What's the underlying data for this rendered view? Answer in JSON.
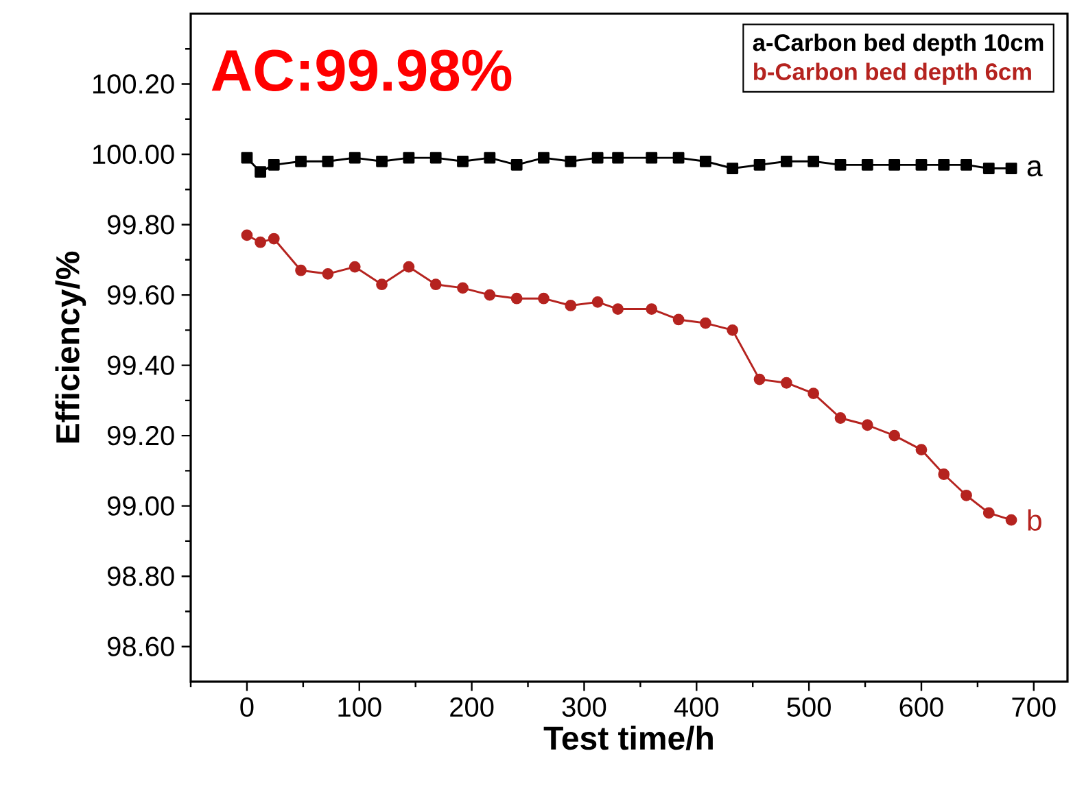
{
  "chart_data": {
    "type": "line",
    "xlabel": "Test time/h",
    "ylabel": "Efficiency/%",
    "annotations": [
      "AC:99.98%",
      "a",
      "b"
    ],
    "x": [
      0,
      12,
      24,
      48,
      72,
      96,
      120,
      144,
      168,
      192,
      216,
      240,
      264,
      288,
      312,
      330,
      360,
      384,
      408,
      432,
      456,
      480,
      504,
      528,
      552,
      576,
      600,
      620,
      640,
      660,
      680
    ],
    "series": [
      {
        "name": "a-Carbon bed depth 10cm",
        "color": "#000000",
        "marker": "square",
        "values": [
          99.99,
          99.95,
          99.97,
          99.98,
          99.98,
          99.99,
          99.98,
          99.99,
          99.99,
          99.98,
          99.99,
          99.97,
          99.99,
          99.98,
          99.99,
          99.99,
          99.99,
          99.99,
          99.98,
          99.96,
          99.97,
          99.98,
          99.98,
          99.97,
          99.97,
          99.97,
          99.97,
          99.97,
          99.97,
          99.96,
          99.96
        ]
      },
      {
        "name": "b-Carbon bed depth 6cm",
        "color": "#b5231f",
        "marker": "circle",
        "values": [
          99.77,
          99.75,
          99.76,
          99.67,
          99.66,
          99.68,
          99.63,
          99.68,
          99.63,
          99.62,
          99.6,
          99.59,
          99.59,
          99.57,
          99.58,
          99.56,
          99.56,
          99.53,
          99.52,
          99.5,
          99.36,
          99.35,
          99.32,
          99.25,
          99.23,
          99.2,
          99.16,
          99.09,
          99.03,
          98.98,
          98.96
        ]
      }
    ],
    "xlim": [
      -50,
      730
    ],
    "ylim": [
      98.5,
      100.4
    ],
    "xticks": [
      {
        "value": -50,
        "label": null
      },
      0,
      {
        "value": 50,
        "label": null
      },
      100,
      {
        "value": 150,
        "label": null
      },
      200,
      {
        "value": 250,
        "label": null
      },
      300,
      {
        "value": 350,
        "label": null
      },
      400,
      {
        "value": 450,
        "label": null
      },
      500,
      {
        "value": 550,
        "label": null
      },
      600,
      {
        "value": 650,
        "label": null
      },
      700
    ],
    "yticks": [
      {
        "value": 98.6,
        "label": "98.60"
      },
      {
        "value": 98.7,
        "label": null
      },
      {
        "value": 98.8,
        "label": "98.80"
      },
      {
        "value": 98.9,
        "label": null
      },
      {
        "value": 99.0,
        "label": "99.00"
      },
      {
        "value": 99.1,
        "label": null
      },
      {
        "value": 99.2,
        "label": "99.20"
      },
      {
        "value": 99.3,
        "label": null
      },
      {
        "value": 99.4,
        "label": "99.40"
      },
      {
        "value": 99.5,
        "label": null
      },
      {
        "value": 99.6,
        "label": "99.60"
      },
      {
        "value": 99.7,
        "label": null
      },
      {
        "value": 99.8,
        "label": "99.80"
      },
      {
        "value": 99.9,
        "label": null
      },
      {
        "value": 100.0,
        "label": "100.00"
      },
      {
        "value": 100.1,
        "label": null
      },
      {
        "value": 100.2,
        "label": "100.20"
      },
      {
        "value": 100.3,
        "label": null
      }
    ],
    "legend": "top right",
    "line_style": "solid",
    "grid": false
  }
}
